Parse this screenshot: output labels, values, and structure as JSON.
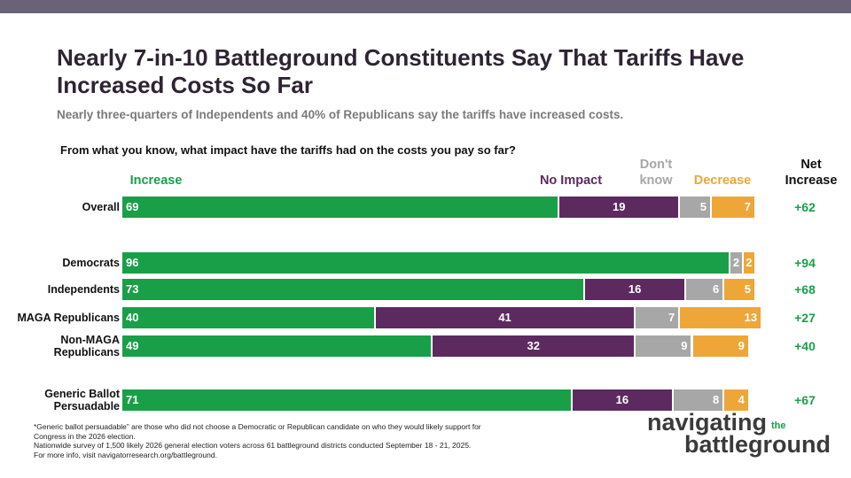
{
  "chart_data": {
    "type": "stacked-bar",
    "title": "Nearly 7-in-10 Battleground Constituents Say That Tariffs Have Increased Costs So Far",
    "subtitle": "Nearly three-quarters of Independents and 40% of Republicans say the tariffs have increased costs.",
    "question": "From what you know, what impact have the tariffs had on the costs you pay so far?",
    "categories": [
      "Overall",
      "Democrats",
      "Independents",
      "MAGA Republicans",
      "Non-MAGA Republicans",
      "Generic Ballot Persuadable"
    ],
    "xlim": [
      0,
      100
    ],
    "series": [
      {
        "name": "Increase",
        "color": "#1a9f49",
        "values": [
          69,
          96,
          73,
          40,
          49,
          71
        ]
      },
      {
        "name": "No Impact",
        "color": "#5c2a5f",
        "values": [
          19,
          0,
          16,
          41,
          32,
          16
        ]
      },
      {
        "name": "Don't know",
        "color": "#a7a7a7",
        "values": [
          5,
          2,
          6,
          7,
          9,
          8
        ]
      },
      {
        "name": "Decrease",
        "color": "#efa638",
        "values": [
          7,
          2,
          5,
          13,
          9,
          4
        ]
      }
    ],
    "net": {
      "title": "Net Increase",
      "color": "#1a9f49",
      "labels": [
        "+62",
        "+94",
        "+68",
        "+27",
        "+40",
        "+67"
      ]
    },
    "footnotes": [
      "*Generic ballot persuadable” are those who did not choose a Democratic or Republican candidate on who they would likely support for Congress in the 2026 election.",
      "Nationwide survey of 1,500 likely 2026 general election voters across 61 battleground districts conducted September 18 - 21, 2025.",
      "For more info, visit navigatorresearch.org/battleground."
    ],
    "logo": {
      "line1": "navigating",
      "small": "the",
      "line2": "battleground"
    }
  }
}
